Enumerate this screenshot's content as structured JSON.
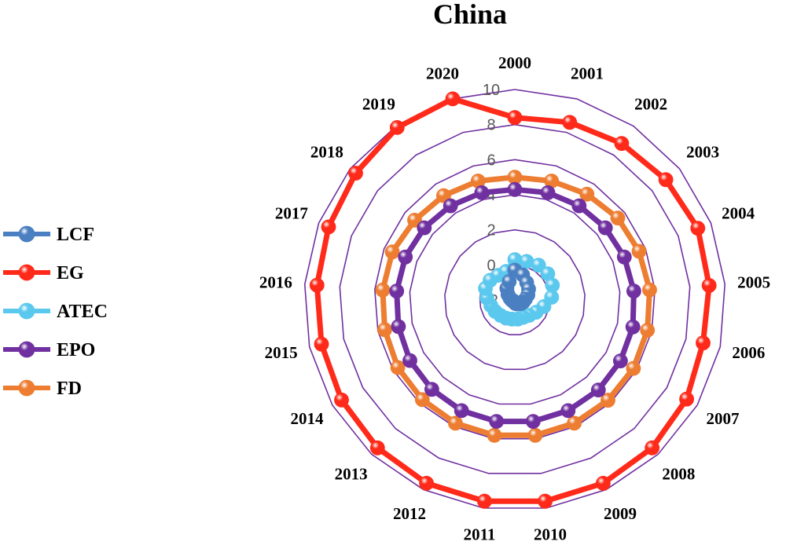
{
  "chart_data": {
    "type": "radar",
    "title": "China",
    "categories": [
      "2000",
      "2001",
      "2002",
      "2003",
      "2004",
      "2005",
      "2006",
      "2007",
      "2008",
      "2009",
      "2010",
      "2011",
      "2012",
      "2013",
      "2014",
      "2015",
      "2016",
      "2017",
      "2018",
      "2019",
      "2020"
    ],
    "radial_ticks": [
      "-2",
      "0",
      "2",
      "4",
      "6",
      "8",
      "10"
    ],
    "rlim": [
      -2,
      10
    ],
    "grid": true,
    "legend_position": "left",
    "series": [
      {
        "name": "LCF",
        "color": "#4a7fc1",
        "values": [
          -0.3,
          -0.5,
          -0.8,
          -1.0,
          -1.2,
          -1.4,
          -1.5,
          -1.6,
          -1.7,
          -1.75,
          -1.8,
          -1.85,
          -1.9,
          -1.9,
          -1.9,
          -1.85,
          -1.8,
          -1.7,
          -1.5,
          -1.2,
          -0.9
        ]
      },
      {
        "name": "EG",
        "color": "#ff2a1a",
        "values": [
          8.4,
          8.6,
          8.8,
          9.0,
          9.2,
          9.1,
          9.0,
          9.3,
          9.5,
          9.6,
          9.6,
          9.6,
          9.6,
          9.5,
          9.4,
          9.3,
          9.3,
          9.4,
          9.6,
          9.9,
          10.0
        ]
      },
      {
        "name": "ATEC",
        "color": "#5bc8ee",
        "values": [
          0.3,
          0.3,
          0.4,
          0.4,
          0.3,
          0.1,
          -0.3,
          -0.6,
          -0.8,
          -0.9,
          -0.9,
          -0.9,
          -0.85,
          -0.8,
          -0.7,
          -0.6,
          -0.4,
          -0.2,
          -0.2,
          -0.3,
          -0.3
        ]
      },
      {
        "name": "EPO",
        "color": "#7030a0",
        "values": [
          4.3,
          4.4,
          4.5,
          4.6,
          4.7,
          4.8,
          4.9,
          4.95,
          5.0,
          5.0,
          5.0,
          5.0,
          5.0,
          4.95,
          4.9,
          4.8,
          4.75,
          4.7,
          4.6,
          4.5,
          4.4
        ]
      },
      {
        "name": "FD",
        "color": "#ed7d31",
        "values": [
          5.0,
          5.1,
          5.3,
          5.5,
          5.6,
          5.7,
          5.75,
          5.8,
          5.8,
          5.8,
          5.8,
          5.8,
          5.8,
          5.75,
          5.7,
          5.6,
          5.55,
          5.5,
          5.3,
          5.2,
          5.1
        ]
      }
    ]
  }
}
